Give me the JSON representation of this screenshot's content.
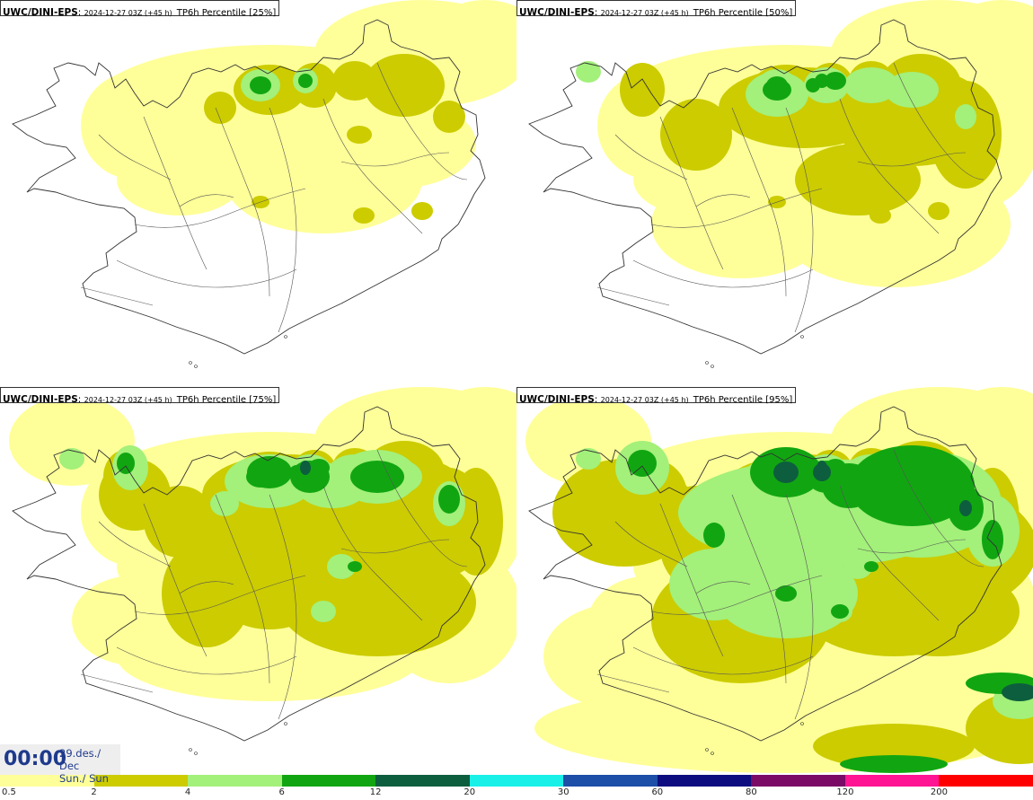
{
  "panels": [
    {
      "model": "UWC/DINI-EPS",
      "run": "2024-12-27 03Z (+45 h)",
      "param": "TP6h Percentile [25%]",
      "level": 0
    },
    {
      "model": "UWC/DINI-EPS",
      "run": "2024-12-27 03Z (+45 h)",
      "param": "TP6h Percentile [50%]",
      "level": 1
    },
    {
      "model": "UWC/DINI-EPS",
      "run": "2024-12-27 03Z (+45 h)",
      "param": "TP6h Percentile [75%]",
      "level": 2
    },
    {
      "model": "UWC/DINI-EPS",
      "run": "2024-12-27 03Z (+45 h)",
      "param": "TP6h Percentile [95%]",
      "level": 3
    }
  ],
  "valid_time": {
    "clock": "00:00",
    "date_line": "29.des./ Dec",
    "day_line": "Sun./ Sun"
  },
  "legend": {
    "labels": [
      "0.5",
      "2",
      "4",
      "6",
      "12",
      "20",
      "30",
      "60",
      "80",
      "120",
      "200"
    ],
    "colors": [
      "#ffff99",
      "#cccc00",
      "#a3f07a",
      "#11a611",
      "#0d5e3e",
      "#18f0e8",
      "#1d4ea8",
      "#0d0d80",
      "#7a0a66",
      "#ff1493",
      "#ff0000"
    ]
  },
  "colors": {
    "coast": "#333333",
    "border": "#555555",
    "time_text": "#1e3a8c"
  }
}
